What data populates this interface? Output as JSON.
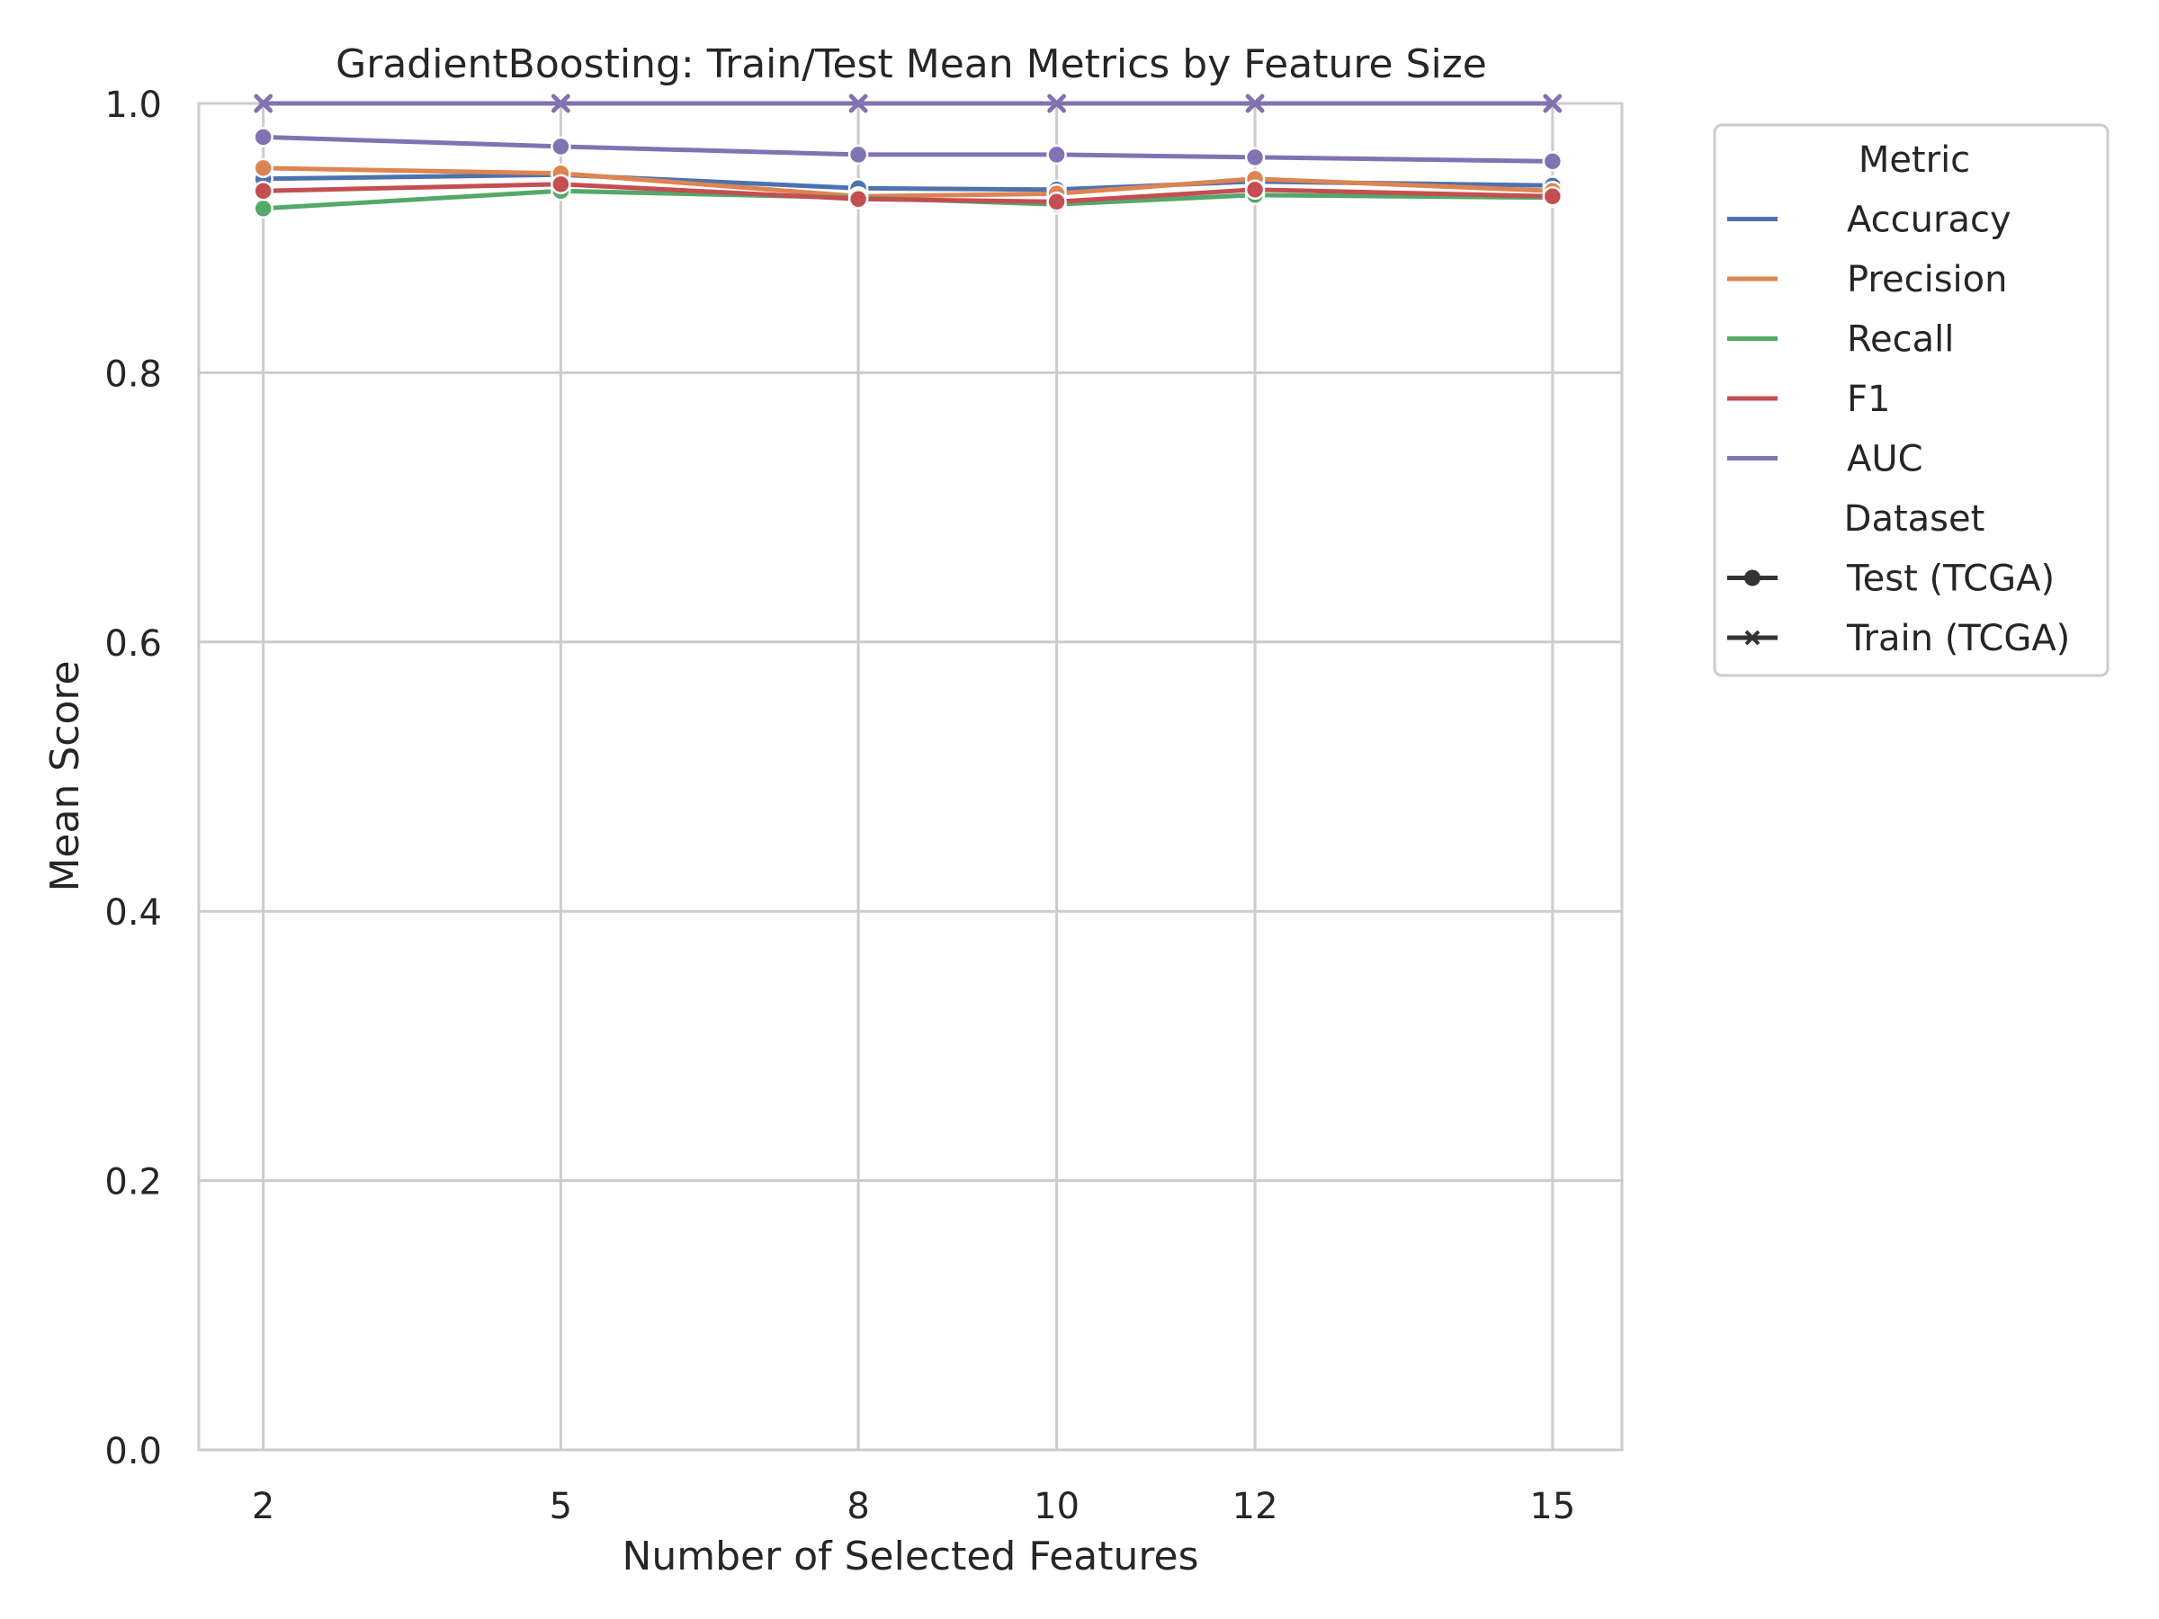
{
  "chart_data": {
    "type": "line",
    "title": "GradientBoosting: Train/Test Mean Metrics by Feature Size",
    "xlabel": "Number of Selected Features",
    "ylabel": "Mean Score",
    "x": [
      2,
      5,
      8,
      10,
      12,
      15
    ],
    "x_tick_labels": [
      "2",
      "5",
      "8",
      "10",
      "12",
      "15"
    ],
    "xlim": [
      1.35,
      15.7
    ],
    "ylim": [
      0.0,
      1.0
    ],
    "y_ticks": [
      0.0,
      0.2,
      0.4,
      0.6,
      0.8,
      1.0
    ],
    "y_tick_labels": [
      "0.0",
      "0.2",
      "0.4",
      "0.6",
      "0.8",
      "1.0"
    ],
    "grid": true,
    "legend_position": "outside-right",
    "legend": {
      "metric_title": "Metric",
      "dataset_title": "Dataset",
      "metrics": [
        {
          "name": "Accuracy",
          "color": "#4c72b0"
        },
        {
          "name": "Precision",
          "color": "#dd8452"
        },
        {
          "name": "Recall",
          "color": "#55a868"
        },
        {
          "name": "F1",
          "color": "#c44e52"
        },
        {
          "name": "AUC",
          "color": "#8172b3"
        }
      ],
      "datasets": [
        {
          "name": "Test (TCGA)",
          "marker": "circle"
        },
        {
          "name": "Train (TCGA)",
          "marker": "x"
        }
      ]
    },
    "series": [
      {
        "metric": "Accuracy",
        "dataset": "Test (TCGA)",
        "values": [
          0.944,
          0.947,
          0.937,
          0.936,
          0.942,
          0.939
        ]
      },
      {
        "metric": "Precision",
        "dataset": "Test (TCGA)",
        "values": [
          0.952,
          0.948,
          0.931,
          0.933,
          0.944,
          0.935
        ]
      },
      {
        "metric": "Recall",
        "dataset": "Test (TCGA)",
        "values": [
          0.922,
          0.935,
          0.93,
          0.925,
          0.932,
          0.93
        ]
      },
      {
        "metric": "F1",
        "dataset": "Test (TCGA)",
        "values": [
          0.935,
          0.94,
          0.929,
          0.927,
          0.936,
          0.931
        ]
      },
      {
        "metric": "AUC",
        "dataset": "Test (TCGA)",
        "values": [
          0.975,
          0.968,
          0.962,
          0.962,
          0.96,
          0.957
        ]
      },
      {
        "metric": "Accuracy",
        "dataset": "Train (TCGA)",
        "values": [
          1.0,
          1.0,
          1.0,
          1.0,
          1.0,
          1.0
        ]
      },
      {
        "metric": "Precision",
        "dataset": "Train (TCGA)",
        "values": [
          1.0,
          1.0,
          1.0,
          1.0,
          1.0,
          1.0
        ]
      },
      {
        "metric": "Recall",
        "dataset": "Train (TCGA)",
        "values": [
          1.0,
          1.0,
          1.0,
          1.0,
          1.0,
          1.0
        ]
      },
      {
        "metric": "F1",
        "dataset": "Train (TCGA)",
        "values": [
          1.0,
          1.0,
          1.0,
          1.0,
          1.0,
          1.0
        ]
      },
      {
        "metric": "AUC",
        "dataset": "Train (TCGA)",
        "values": [
          1.0,
          1.0,
          1.0,
          1.0,
          1.0,
          1.0
        ]
      }
    ]
  }
}
